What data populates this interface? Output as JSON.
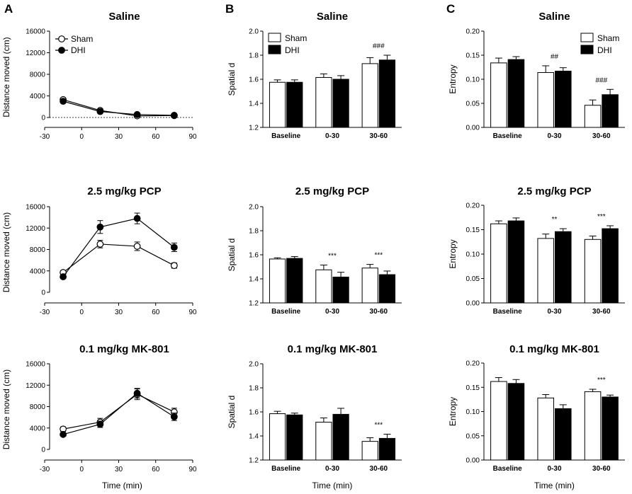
{
  "panel_letters": [
    "A",
    "B",
    "C"
  ],
  "chart_data": [
    {
      "id": "A1",
      "panel": "A",
      "type": "line",
      "title": "Saline",
      "ylabel": "Distance moved (cm)",
      "xlabel": "",
      "xlim": [
        -30,
        90
      ],
      "xticks": [
        -30,
        0,
        30,
        60,
        90
      ],
      "ylim": [
        0,
        16000
      ],
      "yticks": [
        0,
        4000,
        8000,
        12000,
        16000
      ],
      "zero_line": true,
      "legend": [
        "Sham",
        "DHI"
      ],
      "x": [
        -15,
        15,
        45,
        75
      ],
      "series": [
        {
          "name": "Sham",
          "values": [
            3300,
            1300,
            300,
            350
          ],
          "errors": [
            200,
            150,
            100,
            100
          ]
        },
        {
          "name": "DHI",
          "values": [
            3000,
            1100,
            550,
            400
          ],
          "errors": [
            200,
            150,
            100,
            100
          ]
        }
      ]
    },
    {
      "id": "B1",
      "panel": "B",
      "type": "bar",
      "title": "Saline",
      "ylabel": "Spatial d",
      "xlabel": "",
      "ylim": [
        1.2,
        2.0
      ],
      "yticks": [
        "1.2",
        "1.4",
        "1.6",
        "1.8",
        "2.0"
      ],
      "categories": [
        "Baseline",
        "0-30",
        "30-60"
      ],
      "legend": [
        "Sham",
        "DHI"
      ],
      "annotations": [
        "",
        "",
        "###"
      ],
      "series": [
        {
          "name": "Sham",
          "values": [
            1.575,
            1.615,
            1.73
          ],
          "errors": [
            0.02,
            0.03,
            0.05
          ]
        },
        {
          "name": "DHI",
          "values": [
            1.575,
            1.6,
            1.76
          ],
          "errors": [
            0.02,
            0.03,
            0.04
          ]
        }
      ]
    },
    {
      "id": "C1",
      "panel": "C",
      "type": "bar",
      "title": "Saline",
      "ylabel": "Entropy",
      "xlabel": "",
      "ylim": [
        0,
        0.2
      ],
      "yticks": [
        "0.00",
        "0.05",
        "0.10",
        "0.15",
        "0.20"
      ],
      "categories": [
        "Baseline",
        "0-30",
        "30-60"
      ],
      "legend": [
        "Sham",
        "DHI"
      ],
      "annotations": [
        "",
        "##",
        "###"
      ],
      "series": [
        {
          "name": "Sham",
          "values": [
            0.134,
            0.114,
            0.046
          ],
          "errors": [
            0.01,
            0.014,
            0.011
          ]
        },
        {
          "name": "DHI",
          "values": [
            0.141,
            0.117,
            0.068
          ],
          "errors": [
            0.006,
            0.007,
            0.011
          ]
        }
      ]
    },
    {
      "id": "A2",
      "panel": "A",
      "type": "line",
      "title": "2.5 mg/kg PCP",
      "ylabel": "Distance moved (cm)",
      "xlabel": "",
      "xlim": [
        -30,
        90
      ],
      "xticks": [
        -30,
        0,
        30,
        60,
        90
      ],
      "ylim": [
        0,
        16000
      ],
      "yticks": [
        0,
        4000,
        8000,
        12000,
        16000
      ],
      "zero_line": false,
      "legend": [],
      "x": [
        -15,
        15,
        45,
        75
      ],
      "series": [
        {
          "name": "Sham",
          "values": [
            3700,
            9000,
            8600,
            5000
          ],
          "errors": [
            300,
            700,
            800,
            500
          ]
        },
        {
          "name": "DHI",
          "values": [
            2900,
            12200,
            13800,
            8400
          ],
          "errors": [
            300,
            1200,
            1000,
            800
          ]
        }
      ]
    },
    {
      "id": "B2",
      "panel": "B",
      "type": "bar",
      "title": "2.5 mg/kg PCP",
      "ylabel": "Spatial d",
      "xlabel": "",
      "ylim": [
        1.2,
        2.0
      ],
      "yticks": [
        "1.2",
        "1.4",
        "1.6",
        "1.8",
        "2.0"
      ],
      "categories": [
        "Baseline",
        "0-30",
        "30-60"
      ],
      "legend": [],
      "annotations": [
        "",
        "***",
        "***"
      ],
      "series": [
        {
          "name": "Sham",
          "values": [
            1.565,
            1.475,
            1.49
          ],
          "errors": [
            0.01,
            0.04,
            0.03
          ]
        },
        {
          "name": "DHI",
          "values": [
            1.57,
            1.415,
            1.435
          ],
          "errors": [
            0.015,
            0.04,
            0.03
          ]
        }
      ]
    },
    {
      "id": "C2",
      "panel": "C",
      "type": "bar",
      "title": "2.5 mg/kg PCP",
      "ylabel": "Entropy",
      "xlabel": "",
      "ylim": [
        0,
        0.2
      ],
      "yticks": [
        "0.00",
        "0.05",
        "0.10",
        "0.15",
        "0.20"
      ],
      "categories": [
        "Baseline",
        "0-30",
        "30-60"
      ],
      "legend": [],
      "annotations": [
        "",
        "**",
        "***"
      ],
      "series": [
        {
          "name": "Sham",
          "values": [
            0.162,
            0.132,
            0.13
          ],
          "errors": [
            0.006,
            0.009,
            0.007
          ]
        },
        {
          "name": "DHI",
          "values": [
            0.168,
            0.146,
            0.152
          ],
          "errors": [
            0.006,
            0.006,
            0.006
          ]
        }
      ]
    },
    {
      "id": "A3",
      "panel": "A",
      "type": "line",
      "title": "0.1 mg/kg MK-801",
      "ylabel": "Distance moved (cm)",
      "xlabel": "Time (min)",
      "xlim": [
        -30,
        90
      ],
      "xticks": [
        -30,
        0,
        30,
        60,
        90
      ],
      "ylim": [
        0,
        16000
      ],
      "yticks": [
        0,
        4000,
        8000,
        12000,
        16000
      ],
      "zero_line": false,
      "legend": [],
      "x": [
        -15,
        15,
        45,
        75
      ],
      "series": [
        {
          "name": "Sham",
          "values": [
            3800,
            5100,
            10300,
            7000
          ],
          "errors": [
            400,
            700,
            1000,
            700
          ]
        },
        {
          "name": "DHI",
          "values": [
            2800,
            4700,
            10500,
            6100
          ],
          "errors": [
            300,
            600,
            900,
            700
          ]
        }
      ]
    },
    {
      "id": "B3",
      "panel": "B",
      "type": "bar",
      "title": "0.1 mg/kg MK-801",
      "ylabel": "Spatial d",
      "xlabel": "Time (min)",
      "ylim": [
        1.2,
        2.0
      ],
      "yticks": [
        "1.2",
        "1.4",
        "1.6",
        "1.8",
        "2.0"
      ],
      "categories": [
        "Baseline",
        "0-30",
        "30-60"
      ],
      "legend": [],
      "annotations": [
        "",
        "",
        "***"
      ],
      "series": [
        {
          "name": "Sham",
          "values": [
            1.585,
            1.515,
            1.355
          ],
          "errors": [
            0.02,
            0.035,
            0.03
          ]
        },
        {
          "name": "DHI",
          "values": [
            1.575,
            1.58,
            1.38
          ],
          "errors": [
            0.015,
            0.05,
            0.035
          ]
        }
      ]
    },
    {
      "id": "C3",
      "panel": "C",
      "type": "bar",
      "title": "0.1 mg/kg MK-801",
      "ylabel": "Entropy",
      "xlabel": "Time (min)",
      "ylim": [
        0,
        0.2
      ],
      "yticks": [
        "0.00",
        "0.05",
        "0.10",
        "0.15",
        "0.20"
      ],
      "categories": [
        "Baseline",
        "0-30",
        "30-60"
      ],
      "legend": [],
      "annotations": [
        "",
        "",
        "***"
      ],
      "series": [
        {
          "name": "Sham",
          "values": [
            0.162,
            0.128,
            0.141
          ],
          "errors": [
            0.008,
            0.007,
            0.005
          ]
        },
        {
          "name": "DHI",
          "values": [
            0.158,
            0.106,
            0.13
          ],
          "errors": [
            0.008,
            0.008,
            0.004
          ]
        }
      ]
    }
  ]
}
